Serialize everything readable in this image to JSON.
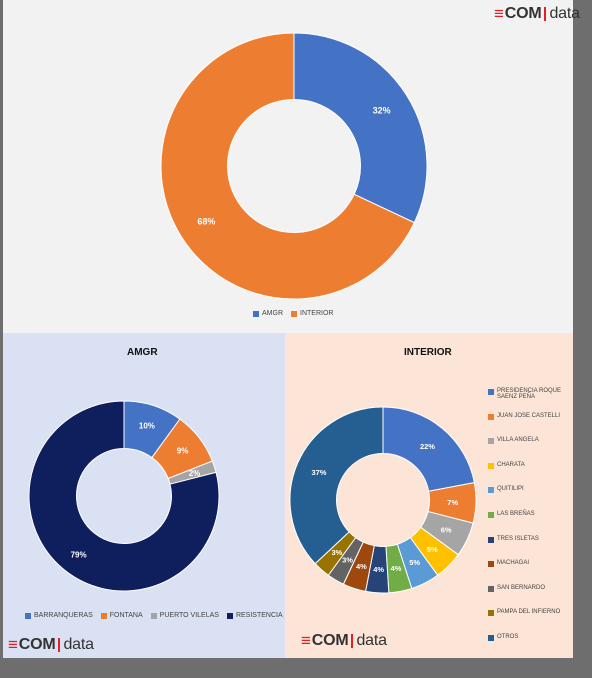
{
  "brand": {
    "mark": "≡",
    "com": "COM",
    "data": "data"
  },
  "colors": {
    "top_panel": "#f2f2f2",
    "left_panel": "#d9e1f2",
    "right_panel": "#fce4d6",
    "logo_red": "#e31e24"
  },
  "chart_data": [
    {
      "type": "pie",
      "title": "",
      "hole": 0.5,
      "categories": [
        "AMGR",
        "INTERIOR"
      ],
      "values": [
        32,
        68
      ],
      "labels": [
        "32%",
        "68%"
      ],
      "colors": [
        "#4472c4",
        "#ed7d31"
      ],
      "legend": "bottom"
    },
    {
      "type": "pie",
      "title": "AMGR",
      "hole": 0.5,
      "categories": [
        "BARRANQUERAS",
        "FONTANA",
        "PUERTO VILELAS",
        "RESISTENCIA"
      ],
      "values": [
        10,
        9,
        2,
        79
      ],
      "labels": [
        "10%",
        "9%",
        "2%",
        "79%"
      ],
      "colors": [
        "#4472c4",
        "#ed7d31",
        "#a5a5a5",
        "#0f1e5c"
      ],
      "legend": "bottom"
    },
    {
      "type": "pie",
      "title": "INTERIOR",
      "hole": 0.5,
      "categories": [
        "PRESIDENCIA ROQUE SAENZ PEÑA",
        "JUAN JOSE CASTELLI",
        "VILLA ANGELA",
        "CHARATA",
        "QUITILIPI",
        "LAS BREÑAS",
        "TRES ISLETAS",
        "MACHAGAI",
        "SAN BERNARDO",
        "PAMPA DEL INFIERNO",
        "OTROS"
      ],
      "values": [
        22,
        7,
        6,
        5,
        5,
        4,
        4,
        4,
        3,
        3,
        37
      ],
      "labels": [
        "22%",
        "7%",
        "6%",
        "5%",
        "5%",
        "4%",
        "4%",
        "4%",
        "3%",
        "3%",
        "37%"
      ],
      "colors": [
        "#4472c4",
        "#ed7d31",
        "#a5a5a5",
        "#ffc000",
        "#5b9bd5",
        "#70ad47",
        "#264478",
        "#9e480e",
        "#636363",
        "#997300",
        "#255e91"
      ],
      "legend": "right"
    }
  ]
}
